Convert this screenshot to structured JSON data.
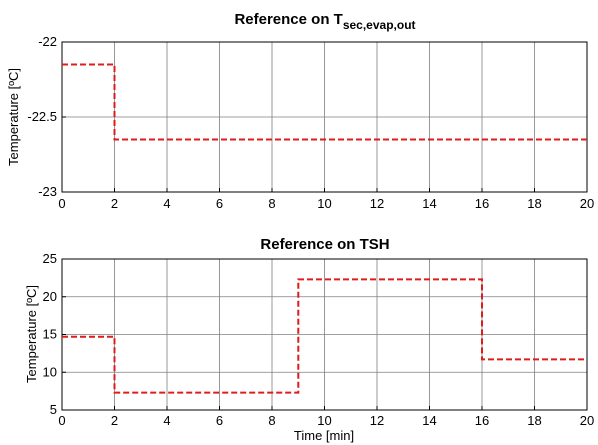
{
  "colors": {
    "series": "#dd1c1c",
    "grid": "#7f7f7f",
    "axis": "#000000"
  },
  "chart_data": [
    {
      "type": "line",
      "title": "Reference on T",
      "title_subscript": "sec,evap,out",
      "xlabel": "",
      "ylabel": "Temperature [ºC]",
      "xlim": [
        0,
        20
      ],
      "ylim": [
        -23,
        -22
      ],
      "xticks": [
        "0",
        "2",
        "4",
        "6",
        "8",
        "10",
        "12",
        "14",
        "16",
        "18",
        "20"
      ],
      "yticks": [
        "-22",
        "-22.5",
        "-23"
      ],
      "grid": true,
      "line_style": "dashed",
      "series": [
        {
          "x": [
            0,
            2,
            2,
            20
          ],
          "y": [
            -22.15,
            -22.15,
            -22.65,
            -22.65
          ]
        }
      ]
    },
    {
      "type": "line",
      "title": "Reference on TSH",
      "xlabel": "Time [min]",
      "ylabel": "Temperature [ºC]",
      "xlim": [
        0,
        20
      ],
      "ylim": [
        5,
        25
      ],
      "xticks": [
        "0",
        "2",
        "4",
        "6",
        "8",
        "10",
        "12",
        "14",
        "16",
        "18",
        "20"
      ],
      "yticks": [
        "25",
        "20",
        "15",
        "10",
        "5"
      ],
      "grid": true,
      "line_style": "dashed",
      "series": [
        {
          "x": [
            0,
            2,
            2,
            9,
            9,
            16,
            16,
            20
          ],
          "y": [
            14.7,
            14.7,
            7.3,
            7.3,
            22.3,
            22.3,
            11.7,
            11.7
          ]
        }
      ]
    }
  ]
}
